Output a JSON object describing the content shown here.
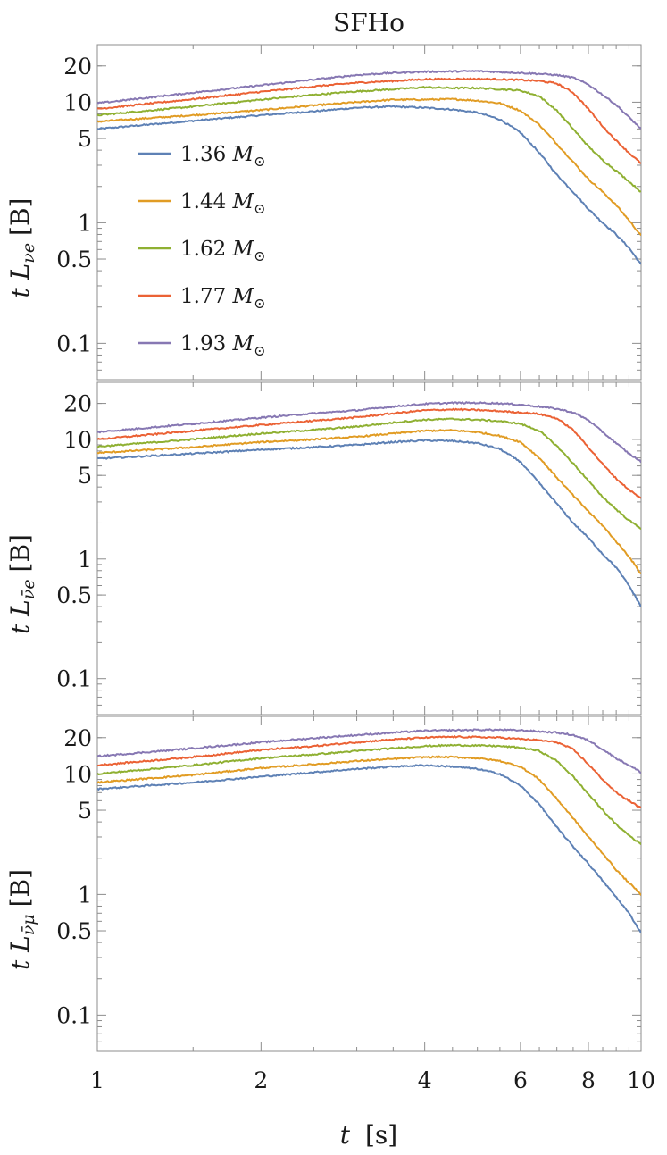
{
  "chart_data": {
    "type": "line",
    "title": "SFHo",
    "x_scale": "log",
    "y_scale": "log",
    "xlim": [
      1,
      10
    ],
    "x_ticks": [
      1,
      2,
      4,
      6,
      8,
      10
    ],
    "x_tick_labels": [
      "1",
      "2",
      "4",
      "6",
      "8",
      "10"
    ],
    "xlabel": {
      "symbol": "t",
      "unit": "[s]"
    },
    "legend_position": "top-left of upper panel",
    "series_colors": [
      "#5e81b5",
      "#e19c24",
      "#8fb032",
      "#eb6235",
      "#8778b3"
    ],
    "series_names": [
      "1.36 M",
      "1.44 M",
      "1.62 M",
      "1.77 M",
      "1.93 M"
    ],
    "legend_symbol_suffix": "⊙",
    "panels": [
      {
        "ylabel": {
          "symbol": "t L",
          "subscript": "νe",
          "unit": "[B]"
        },
        "ylim": [
          0.05,
          30
        ],
        "y_ticks": [
          0.1,
          0.5,
          1,
          5,
          10,
          20
        ],
        "y_tick_labels": [
          "0.1",
          "0.5",
          "1",
          "5",
          "10",
          "20"
        ],
        "x": [
          1,
          1.5,
          2,
          2.5,
          3,
          3.5,
          4,
          4.5,
          5,
          5.5,
          6,
          6.5,
          7,
          7.5,
          8,
          8.5,
          9,
          9.5,
          10
        ],
        "series": [
          {
            "name": "1.36 M",
            "values": [
              6.0,
              7.0,
              7.8,
              8.4,
              9.0,
              9.2,
              9.0,
              8.7,
              8.2,
              7.2,
              5.6,
              3.8,
              2.5,
              1.8,
              1.3,
              1.0,
              0.8,
              0.62,
              0.45
            ]
          },
          {
            "name": "1.44 M",
            "values": [
              6.9,
              7.8,
              8.6,
              9.4,
              10.0,
              10.5,
              10.5,
              10.6,
              10.3,
              9.8,
              8.5,
              6.5,
              4.5,
              3.2,
              2.3,
              1.8,
              1.4,
              1.05,
              0.78
            ]
          },
          {
            "name": "1.62 M",
            "values": [
              7.8,
              9.2,
              10.5,
              11.5,
              12.3,
              12.8,
              13.3,
              13.1,
              13.1,
              12.8,
              12.5,
              11.2,
              8.5,
              6.0,
              4.3,
              3.3,
              2.7,
              2.2,
              1.8
            ]
          },
          {
            "name": "1.77 M",
            "values": [
              8.8,
              10.6,
              12.2,
              13.5,
              14.5,
              15.0,
              15.5,
              15.6,
              15.6,
              15.5,
              15.3,
              15.0,
              14.3,
              12.0,
              8.8,
              6.3,
              4.8,
              3.8,
              3.1
            ]
          },
          {
            "name": "1.93 M",
            "values": [
              9.8,
              12.0,
              13.8,
              15.4,
              16.8,
              17.5,
              17.9,
              18.0,
              18.1,
              17.8,
              17.5,
              17.2,
              16.8,
              16.0,
              14.0,
              11.5,
              9.5,
              7.5,
              6.0
            ]
          }
        ]
      },
      {
        "ylabel": {
          "symbol": "t L",
          "subscript": "ν̄e",
          "unit": "[B]"
        },
        "ylim": [
          0.05,
          30
        ],
        "y_ticks": [
          0.1,
          0.5,
          1,
          5,
          10,
          20
        ],
        "y_tick_labels": [
          "0.1",
          "0.5",
          "1",
          "5",
          "10",
          "20"
        ],
        "x": [
          1,
          1.5,
          2,
          2.5,
          3,
          3.5,
          4,
          4.5,
          5,
          5.5,
          6,
          6.5,
          7,
          7.5,
          8,
          8.5,
          9,
          9.5,
          10
        ],
        "series": [
          {
            "name": "1.36 M",
            "values": [
              6.9,
              7.6,
              8.2,
              8.6,
              9.0,
              9.5,
              9.8,
              9.7,
              9.3,
              8.3,
              6.5,
              4.3,
              2.9,
              2.0,
              1.5,
              1.1,
              0.85,
              0.6,
              0.4
            ]
          },
          {
            "name": "1.44 M",
            "values": [
              7.7,
              8.6,
              9.5,
              10.0,
              10.5,
              11.2,
              11.8,
              11.9,
              11.5,
              10.7,
              9.5,
              7.0,
              4.8,
              3.4,
              2.5,
              1.9,
              1.4,
              1.05,
              0.75
            ]
          },
          {
            "name": "1.62 M",
            "values": [
              8.7,
              10.0,
              11.2,
              12.0,
              12.8,
              13.8,
              14.6,
              14.8,
              14.6,
              14.2,
              13.5,
              11.8,
              8.8,
              6.3,
              4.5,
              3.3,
              2.6,
              2.1,
              1.8
            ]
          },
          {
            "name": "1.77 M",
            "values": [
              10.0,
              11.8,
              13.2,
              14.3,
              15.3,
              16.5,
              17.5,
              17.8,
              17.6,
              17.2,
              16.8,
              16.3,
              15.0,
              12.0,
              8.6,
              6.2,
              4.7,
              3.8,
              3.2
            ]
          },
          {
            "name": "1.93 M",
            "values": [
              11.5,
              13.5,
              15.2,
              16.5,
              17.5,
              18.8,
              19.8,
              20.2,
              20.2,
              20.0,
              19.5,
              18.8,
              18.0,
              16.8,
              14.5,
              11.5,
              9.3,
              7.6,
              6.5
            ]
          }
        ]
      },
      {
        "ylabel": {
          "symbol": "t L",
          "subscript": "ν̄μ",
          "unit": "[B]"
        },
        "ylim": [
          0.05,
          30
        ],
        "y_ticks": [
          0.1,
          0.5,
          1,
          5,
          10,
          20
        ],
        "y_tick_labels": [
          "0.1",
          "0.5",
          "1",
          "5",
          "10",
          "20"
        ],
        "x": [
          1,
          1.5,
          2,
          2.5,
          3,
          3.5,
          4,
          4.5,
          5,
          5.5,
          6,
          6.5,
          7,
          7.5,
          8,
          8.5,
          9,
          9.5,
          10
        ],
        "series": [
          {
            "name": "1.36 M",
            "values": [
              7.5,
              8.5,
              9.5,
              10.3,
              11.0,
              11.5,
              11.8,
              11.5,
              11.0,
              10.0,
              8.0,
              5.6,
              3.6,
              2.5,
              1.8,
              1.3,
              0.95,
              0.7,
              0.48
            ]
          },
          {
            "name": "1.44 M",
            "values": [
              8.5,
              9.8,
              11.2,
              12.0,
              12.8,
              13.3,
              13.8,
              13.8,
              13.5,
              12.8,
              11.5,
              9.0,
              6.2,
              4.3,
              3.0,
              2.2,
              1.6,
              1.25,
              1.0
            ]
          },
          {
            "name": "1.62 M",
            "values": [
              10.0,
              11.8,
              13.5,
              14.5,
              15.5,
              16.3,
              17.0,
              17.3,
              17.2,
              17.0,
              16.5,
              15.5,
              12.8,
              9.5,
              6.8,
              5.0,
              3.8,
              3.1,
              2.6
            ]
          },
          {
            "name": "1.77 M",
            "values": [
              11.8,
              13.8,
              15.8,
              17.0,
              18.3,
              19.3,
              20.0,
              20.3,
              20.2,
              20.0,
              19.5,
              19.0,
              18.3,
              16.0,
              12.0,
              9.0,
              7.0,
              6.0,
              5.2
            ]
          },
          {
            "name": "1.93 M",
            "values": [
              14.0,
              16.3,
              18.3,
              19.8,
              21.0,
              22.0,
              22.8,
              23.0,
              23.2,
              23.2,
              23.0,
              22.5,
              22.0,
              21.0,
              19.0,
              16.0,
              13.5,
              11.8,
              10.3
            ]
          }
        ]
      }
    ]
  }
}
